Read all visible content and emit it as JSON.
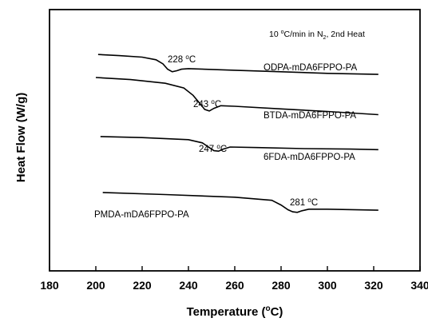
{
  "chart_data": {
    "type": "line",
    "xlabel": "Temperature (",
    "xlabel_unit": "o",
    "xlabel_end": "C)",
    "ylabel": "Heat Flow (W/g)",
    "xlim": [
      180,
      340
    ],
    "ylim": [
      0,
      1
    ],
    "x_ticks": [
      "180",
      "200",
      "220",
      "240",
      "260",
      "280",
      "300",
      "320",
      "340"
    ],
    "y_tick_labels_shown": false,
    "grid": false,
    "legend": "none",
    "annotation": {
      "prefix": "10 ",
      "degree": "o",
      "mid": "C/min in N",
      "sub": "2",
      "suffix": ", 2nd Heat"
    },
    "series": [
      {
        "name": "ODPA-mDA6FPPO-PA",
        "tg_value": "228",
        "tg_degree": "o",
        "tg_unit": "C",
        "x": [
          201,
          210,
          220,
          226,
          229,
          231,
          233,
          235,
          237,
          240,
          260,
          280,
          300,
          322
        ],
        "y": [
          0.828,
          0.824,
          0.818,
          0.808,
          0.792,
          0.772,
          0.762,
          0.766,
          0.772,
          0.774,
          0.768,
          0.762,
          0.756,
          0.752
        ]
      },
      {
        "name": "BTDA-mDA6FPPO-PA",
        "tg_value": "243",
        "tg_degree": "o",
        "tg_unit": "C",
        "x": [
          200,
          215,
          230,
          238,
          242,
          245,
          247,
          249,
          251,
          254,
          260,
          280,
          300,
          322
        ],
        "y": [
          0.74,
          0.732,
          0.718,
          0.7,
          0.672,
          0.64,
          0.618,
          0.612,
          0.622,
          0.632,
          0.63,
          0.62,
          0.61,
          0.598
        ]
      },
      {
        "name": "6FDA-mDA6FPPO-PA",
        "tg_value": "247",
        "tg_degree": "o",
        "tg_unit": "C",
        "x": [
          202,
          220,
          240,
          246,
          249,
          251,
          253,
          255,
          258,
          270,
          290,
          310,
          322
        ],
        "y": [
          0.514,
          0.51,
          0.502,
          0.49,
          0.472,
          0.46,
          0.458,
          0.466,
          0.474,
          0.472,
          0.468,
          0.466,
          0.464
        ]
      },
      {
        "name": "PMDA-mDA6FPPO-PA",
        "tg_value": "281",
        "tg_degree": "o",
        "tg_unit": "C",
        "x": [
          203,
          230,
          260,
          276,
          280,
          283,
          285,
          287,
          289,
          292,
          300,
          322
        ],
        "y": [
          0.3,
          0.292,
          0.282,
          0.27,
          0.252,
          0.234,
          0.226,
          0.224,
          0.23,
          0.236,
          0.236,
          0.232
        ]
      }
    ]
  }
}
